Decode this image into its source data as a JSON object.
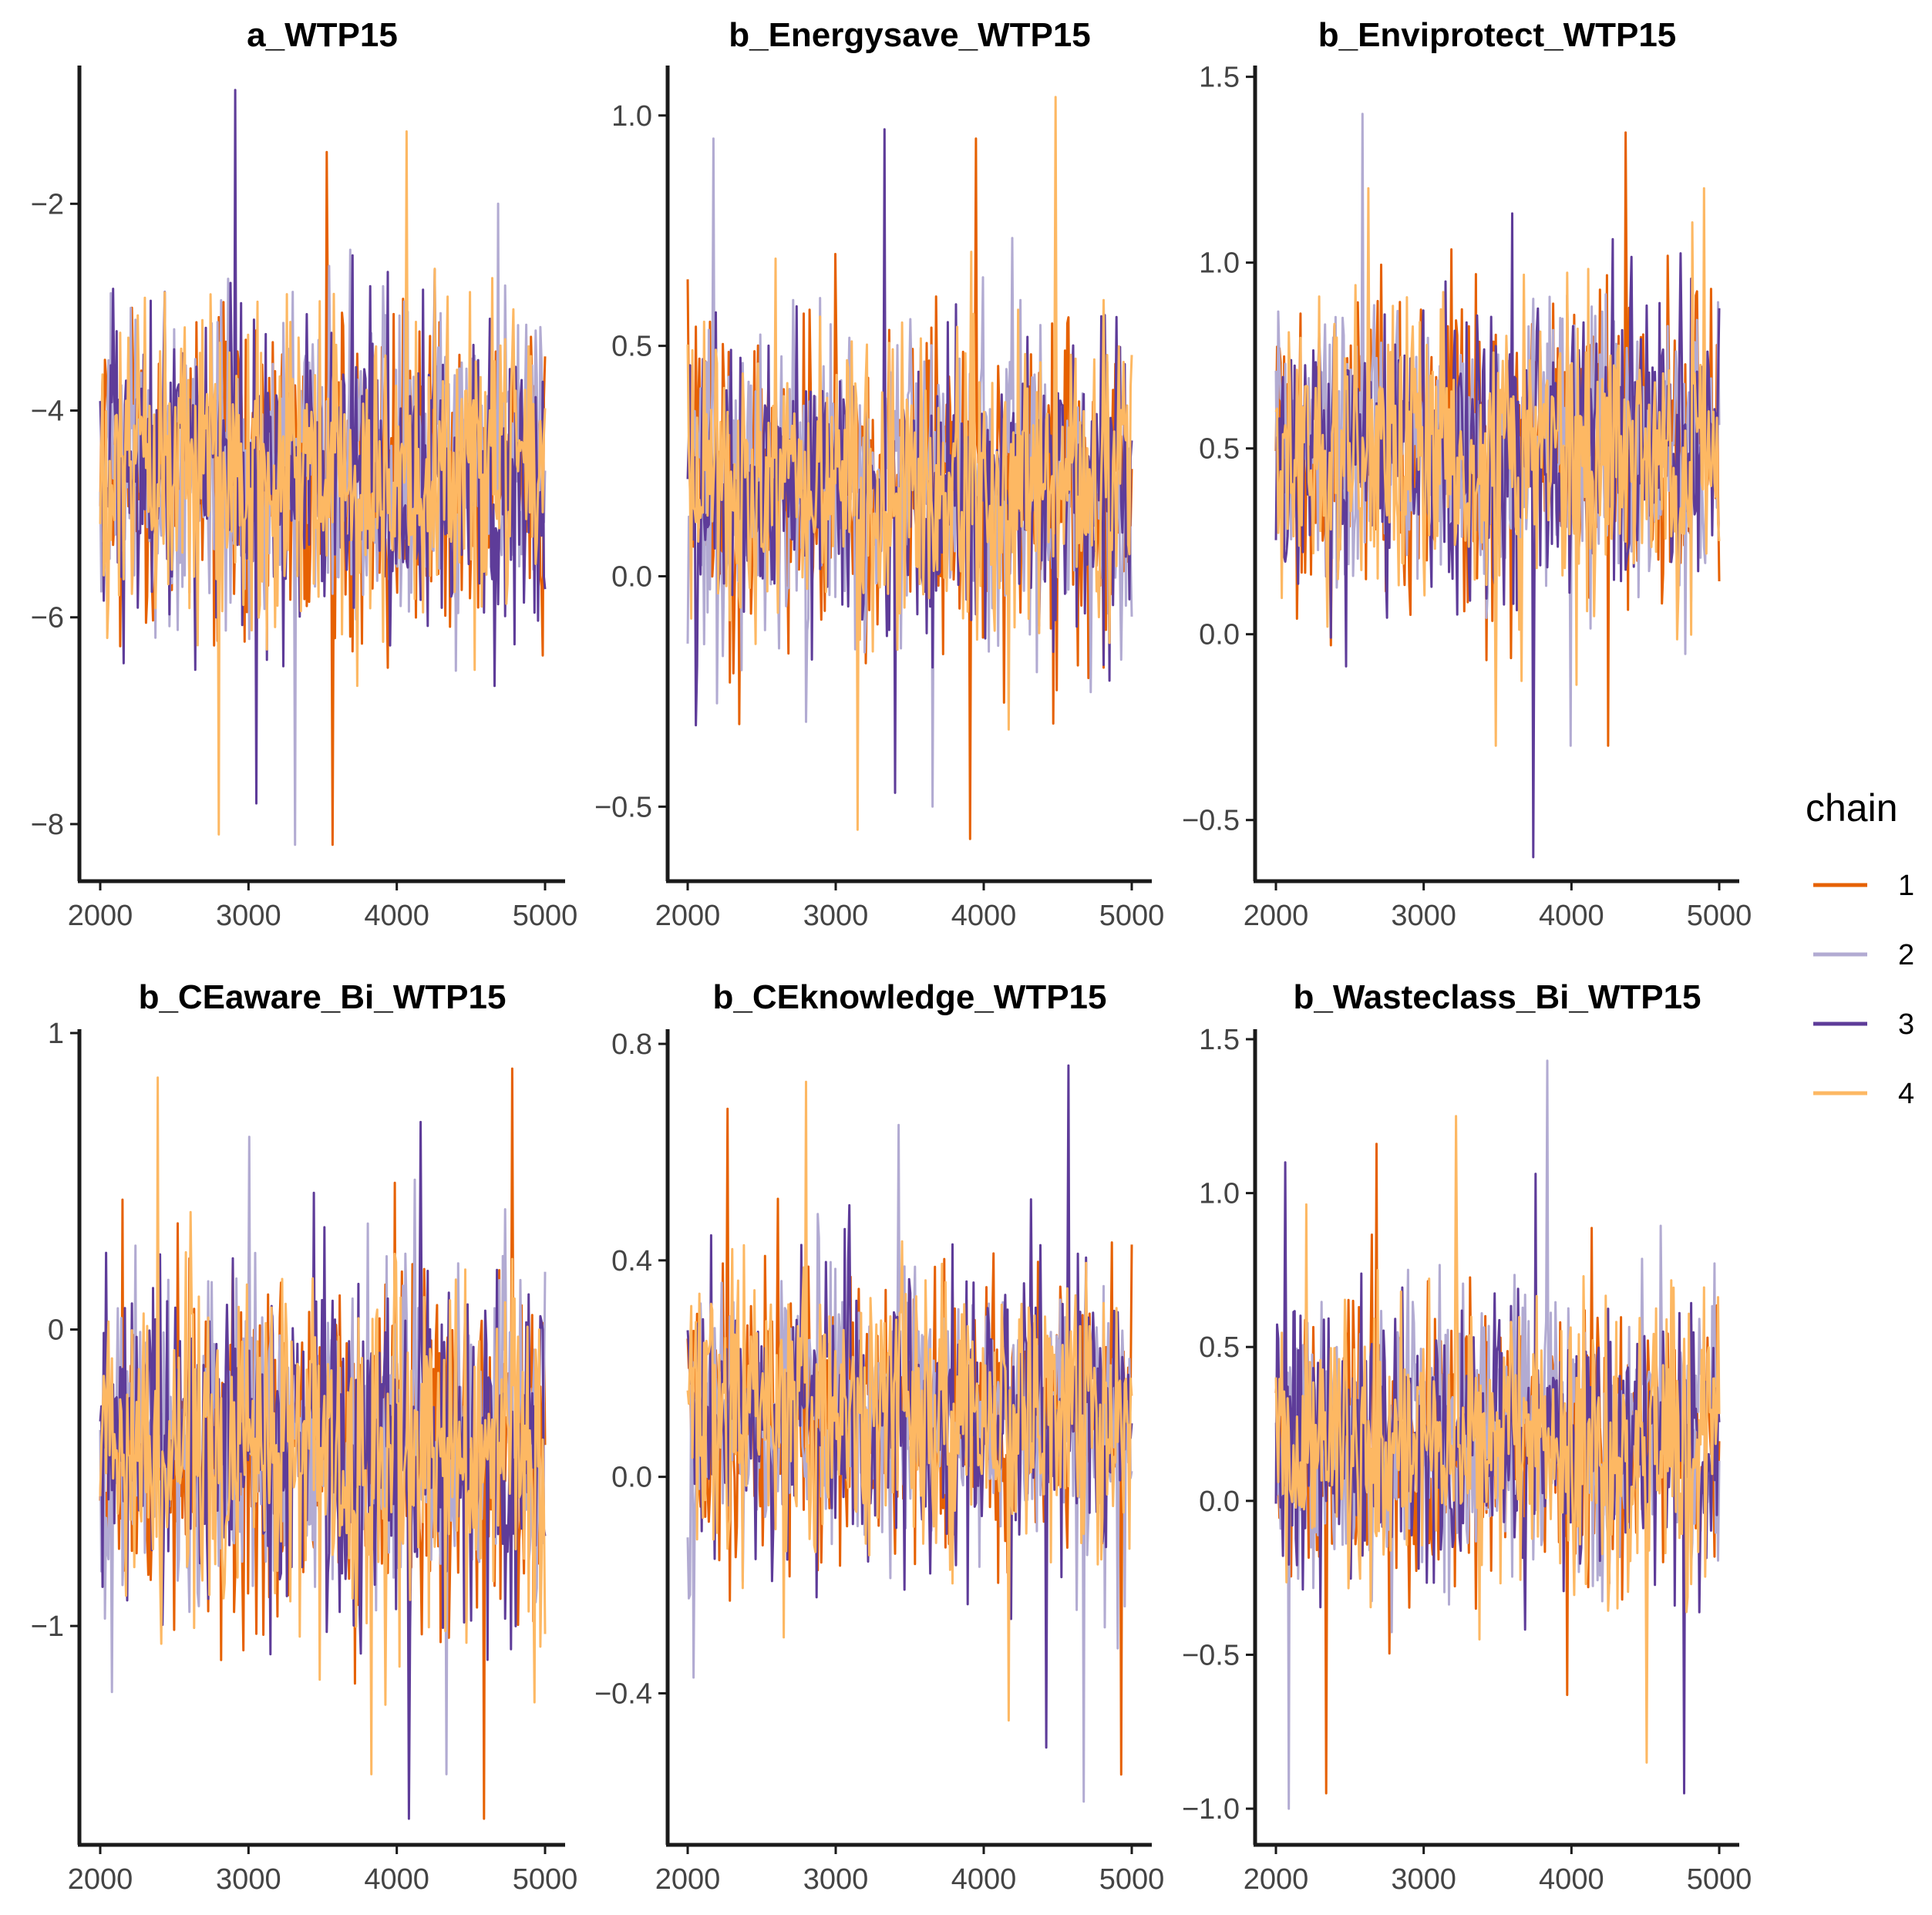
{
  "legend": {
    "title": "chain",
    "entries": [
      {
        "label": "1",
        "color": "#E66101"
      },
      {
        "label": "2",
        "color": "#B2ABD2"
      },
      {
        "label": "3",
        "color": "#5E3C99"
      },
      {
        "label": "4",
        "color": "#FDB863"
      }
    ]
  },
  "chart_data": [
    {
      "type": "line",
      "title": "a_WTP15",
      "xlim": [
        2000,
        5000
      ],
      "x_ticks": [
        2000,
        3000,
        4000,
        5000
      ],
      "ylim": [
        -8.5,
        -0.7
      ],
      "y_ticks": [
        -8,
        -6,
        -4,
        -2
      ],
      "y_tick_labels": [
        "−8",
        "−6",
        "−4",
        "−2"
      ],
      "chain_center": -4.55,
      "chain_spread": 0.75,
      "series": [
        {
          "name": "1",
          "observed_range": [
            -8.2,
            -1.5
          ]
        },
        {
          "name": "2",
          "observed_range": [
            -8.2,
            -2.0
          ]
        },
        {
          "name": "3",
          "observed_range": [
            -7.8,
            -0.9
          ]
        },
        {
          "name": "4",
          "observed_range": [
            -8.1,
            -1.3
          ]
        }
      ]
    },
    {
      "type": "line",
      "title": "b_Energysave_WTP15",
      "xlim": [
        2000,
        5000
      ],
      "x_ticks": [
        2000,
        3000,
        4000,
        5000
      ],
      "ylim": [
        -0.65,
        1.1
      ],
      "y_ticks": [
        -0.5,
        0.0,
        0.5,
        1.0
      ],
      "y_tick_labels": [
        "−0.5",
        "0.0",
        "0.5",
        "1.0"
      ],
      "chain_center": 0.2,
      "chain_spread": 0.17,
      "series": [
        {
          "name": "1",
          "observed_range": [
            -0.57,
            0.95
          ]
        },
        {
          "name": "2",
          "observed_range": [
            -0.5,
            0.95
          ]
        },
        {
          "name": "3",
          "observed_range": [
            -0.47,
            0.97
          ]
        },
        {
          "name": "4",
          "observed_range": [
            -0.55,
            1.04
          ]
        }
      ]
    },
    {
      "type": "line",
      "title": "b_Enviprotect_WTP15",
      "xlim": [
        2000,
        5000
      ],
      "x_ticks": [
        2000,
        3000,
        4000,
        5000
      ],
      "ylim": [
        -0.65,
        1.52
      ],
      "y_ticks": [
        -0.5,
        0.0,
        0.5,
        1.0,
        1.5
      ],
      "y_tick_labels": [
        "−0.5",
        "0.0",
        "0.5",
        "1.0",
        "1.5"
      ],
      "chain_center": 0.5,
      "chain_spread": 0.2,
      "series": [
        {
          "name": "1",
          "observed_range": [
            -0.3,
            1.35
          ]
        },
        {
          "name": "2",
          "observed_range": [
            -0.3,
            1.4
          ]
        },
        {
          "name": "3",
          "observed_range": [
            -0.6,
            1.43
          ]
        },
        {
          "name": "4",
          "observed_range": [
            -0.3,
            1.2
          ]
        }
      ]
    },
    {
      "type": "line",
      "title": "b_CEaware_Bi_WTP15",
      "xlim": [
        2000,
        5000
      ],
      "x_ticks": [
        2000,
        3000,
        4000,
        5000
      ],
      "ylim": [
        -1.72,
        1.0
      ],
      "y_ticks": [
        -1,
        0,
        1
      ],
      "y_tick_labels": [
        "−1",
        "0",
        "1"
      ],
      "chain_center": -0.4,
      "chain_spread": 0.28,
      "series": [
        {
          "name": "1",
          "observed_range": [
            -1.65,
            0.88
          ]
        },
        {
          "name": "2",
          "observed_range": [
            -1.5,
            0.65
          ]
        },
        {
          "name": "3",
          "observed_range": [
            -1.65,
            0.7
          ]
        },
        {
          "name": "4",
          "observed_range": [
            -1.5,
            0.85
          ]
        }
      ]
    },
    {
      "type": "line",
      "title": "b_CEknowledge_WTP15",
      "xlim": [
        2000,
        5000
      ],
      "x_ticks": [
        2000,
        3000,
        4000,
        5000
      ],
      "ylim": [
        -0.67,
        0.82
      ],
      "y_ticks": [
        -0.4,
        0.0,
        0.4,
        0.8
      ],
      "y_tick_labels": [
        "−0.4",
        "0.0",
        "0.4",
        "0.8"
      ],
      "chain_center": 0.12,
      "chain_spread": 0.13,
      "series": [
        {
          "name": "1",
          "observed_range": [
            -0.55,
            0.68
          ]
        },
        {
          "name": "2",
          "observed_range": [
            -0.6,
            0.65
          ]
        },
        {
          "name": "3",
          "observed_range": [
            -0.5,
            0.76
          ]
        },
        {
          "name": "4",
          "observed_range": [
            -0.45,
            0.73
          ]
        }
      ]
    },
    {
      "type": "line",
      "title": "b_Wasteclass_Bi_WTP15",
      "xlim": [
        2000,
        5000
      ],
      "x_ticks": [
        2000,
        3000,
        4000,
        5000
      ],
      "ylim": [
        -1.1,
        1.52
      ],
      "y_ticks": [
        -1.0,
        -0.5,
        0.0,
        0.5,
        1.0,
        1.5
      ],
      "y_tick_labels": [
        "−1.0",
        "−0.5",
        "0.0",
        "0.5",
        "1.0",
        "1.5"
      ],
      "chain_center": 0.2,
      "chain_spread": 0.23,
      "series": [
        {
          "name": "1",
          "observed_range": [
            -0.95,
            1.16
          ]
        },
        {
          "name": "2",
          "observed_range": [
            -1.0,
            1.43
          ]
        },
        {
          "name": "3",
          "observed_range": [
            -0.95,
            1.1
          ]
        },
        {
          "name": "4",
          "observed_range": [
            -0.85,
            1.25
          ]
        }
      ]
    }
  ]
}
